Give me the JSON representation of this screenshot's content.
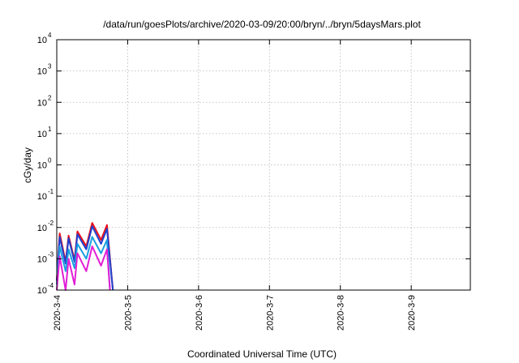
{
  "chart_data": {
    "type": "line",
    "title": "/data/run/goesPlots/archive/2020-03-09/20:00/bryn/../bryn/5daysMars.plot",
    "xlabel": "Coordinated Universal Time (UTC)",
    "ylabel": "cGy/day",
    "x_tick_labels": [
      "2020-3-4",
      "2020-3-5",
      "2020-3-6",
      "2020-3-7",
      "2020-3-8",
      "2020-3-9"
    ],
    "xlim": [
      "2020-03-04",
      "2020-03-09 20:00"
    ],
    "yscale": "log",
    "ylim": [
      0.0001,
      10000
    ],
    "y_ticks": [
      {
        "base": "10",
        "exp": "-4"
      },
      {
        "base": "10",
        "exp": "-3"
      },
      {
        "base": "10",
        "exp": "-2"
      },
      {
        "base": "10",
        "exp": "-1"
      },
      {
        "base": "10",
        "exp": "0"
      },
      {
        "base": "10",
        "exp": "1"
      },
      {
        "base": "10",
        "exp": "2"
      },
      {
        "base": "10",
        "exp": "3"
      },
      {
        "base": "10",
        "exp": "4"
      }
    ],
    "grid": true,
    "series": [
      {
        "color": "#e8101a",
        "x": [
          "2020-03-04 00:00",
          "2020-03-04 01:00",
          "2020-03-04 03:00",
          "2020-03-04 04:00",
          "2020-03-04 06:00",
          "2020-03-04 07:00",
          "2020-03-04 10:00",
          "2020-03-04 12:00",
          "2020-03-04 15:00",
          "2020-03-04 17:00",
          "2020-03-04 19:00"
        ],
        "y": [
          0.0002,
          0.0065,
          0.0008,
          0.0055,
          0.0009,
          0.0075,
          0.0025,
          0.014,
          0.004,
          0.012,
          0.0001
        ]
      },
      {
        "color": "#1f3fd0",
        "x": [
          "2020-03-04 00:00",
          "2020-03-04 01:00",
          "2020-03-04 03:00",
          "2020-03-04 04:00",
          "2020-03-04 06:00",
          "2020-03-04 07:00",
          "2020-03-04 10:00",
          "2020-03-04 12:00",
          "2020-03-04 15:00",
          "2020-03-04 17:00",
          "2020-03-04 19:00"
        ],
        "y": [
          0.0002,
          0.005,
          0.0007,
          0.0045,
          0.0008,
          0.006,
          0.002,
          0.011,
          0.003,
          0.009,
          0.0001
        ]
      },
      {
        "color": "#1a9fe0",
        "x": [
          "2020-03-04 00:00",
          "2020-03-04 01:00",
          "2020-03-04 03:00",
          "2020-03-04 04:00",
          "2020-03-04 06:00",
          "2020-03-04 07:00",
          "2020-03-04 10:00",
          "2020-03-04 12:00",
          "2020-03-04 15:00",
          "2020-03-04 17:00",
          "2020-03-04 18:00"
        ],
        "y": [
          0.00015,
          0.0025,
          0.0004,
          0.002,
          0.0005,
          0.003,
          0.001,
          0.005,
          0.0015,
          0.004,
          0.0001
        ]
      },
      {
        "color": "#e21ed6",
        "x": [
          "2020-03-04 00:00",
          "2020-03-04 01:00",
          "2020-03-04 03:00",
          "2020-03-04 04:00",
          "2020-03-04 06:00",
          "2020-03-04 07:00",
          "2020-03-04 10:00",
          "2020-03-04 12:00",
          "2020-03-04 15:00",
          "2020-03-04 17:00",
          "2020-03-04 18:00"
        ],
        "y": [
          0.0001,
          0.0012,
          0.0001,
          0.001,
          0.00015,
          0.0015,
          0.0004,
          0.0025,
          0.0006,
          0.002,
          0.0001
        ]
      }
    ]
  }
}
